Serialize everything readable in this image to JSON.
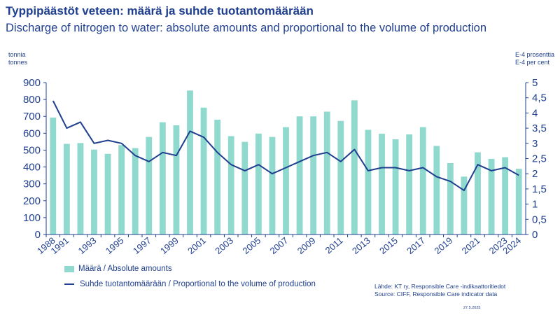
{
  "title": "Typpipäästöt veteen: määrä ja suhde tuotantomäärään",
  "subtitle": "Discharge of nitrogen to water: absolute amounts and proportional to the volume of production",
  "left_unit": [
    "tonnia",
    "tonnes"
  ],
  "right_unit": [
    "E-4 prosenttia",
    "E-4 per cent"
  ],
  "source": [
    "Lähde: KT ry, Responsible Care -indikaattoritiedot",
    "Source: CIFF, Responsible Care indicator data"
  ],
  "date": "27.5.2025",
  "colors": {
    "bar": "#8fd9cf",
    "line": "#1f3f8f",
    "text": "#1f3f8f",
    "axis": "#1f3f8f"
  },
  "chart_data": {
    "type": "bar+line",
    "categories": [
      "1988",
      "1991",
      "1992",
      "1993",
      "1994",
      "1995",
      "1996",
      "1997",
      "1998",
      "1999",
      "2000",
      "2001",
      "2002",
      "2003",
      "2004",
      "2005",
      "2006",
      "2007",
      "2008",
      "2009",
      "2010",
      "2011",
      "2012",
      "2013",
      "2014",
      "2015",
      "2016",
      "2017",
      "2018",
      "2019",
      "2020",
      "2021",
      "2022",
      "2023",
      "2024"
    ],
    "shown_tick_labels": [
      "1988",
      "1991",
      "1993",
      "1995",
      "1997",
      "1999",
      "2001",
      "2003",
      "2005",
      "2007",
      "2009",
      "2011",
      "2013",
      "2015",
      "2017",
      "2019",
      "2021",
      "2023",
      "2024"
    ],
    "series": [
      {
        "name": "Määrä / Absolute amounts",
        "type": "bar",
        "axis": "left",
        "values": [
          693,
          537,
          542,
          503,
          478,
          530,
          512,
          578,
          665,
          647,
          853,
          752,
          680,
          583,
          549,
          598,
          578,
          636,
          700,
          700,
          728,
          673,
          795,
          620,
          597,
          564,
          593,
          636,
          525,
          423,
          343,
          487,
          448,
          458,
          389
        ]
      },
      {
        "name": "Suhde tuotantomäärään  /  Proportional to the volume of production",
        "type": "line",
        "axis": "right",
        "values": [
          4.4,
          3.5,
          3.7,
          3.0,
          3.1,
          3.0,
          2.6,
          2.4,
          2.7,
          2.6,
          3.4,
          3.2,
          2.7,
          2.3,
          2.1,
          2.3,
          2.0,
          2.2,
          2.4,
          2.6,
          2.7,
          2.4,
          2.8,
          2.1,
          2.2,
          2.2,
          2.1,
          2.2,
          1.9,
          1.75,
          1.45,
          2.3,
          2.1,
          2.2,
          1.95
        ]
      }
    ],
    "y_left": {
      "min": 0,
      "max": 900,
      "ticks": [
        "0",
        "100",
        "200",
        "300",
        "400",
        "500",
        "600",
        "700",
        "800",
        "900"
      ]
    },
    "y_right": {
      "min": 0,
      "max": 5,
      "ticks": [
        "0",
        "0,5",
        "1",
        "1,5",
        "2",
        "2,5",
        "3",
        "3,5",
        "4",
        "4,5",
        "5"
      ]
    },
    "legend_position": "bottom-left",
    "grid": false
  }
}
